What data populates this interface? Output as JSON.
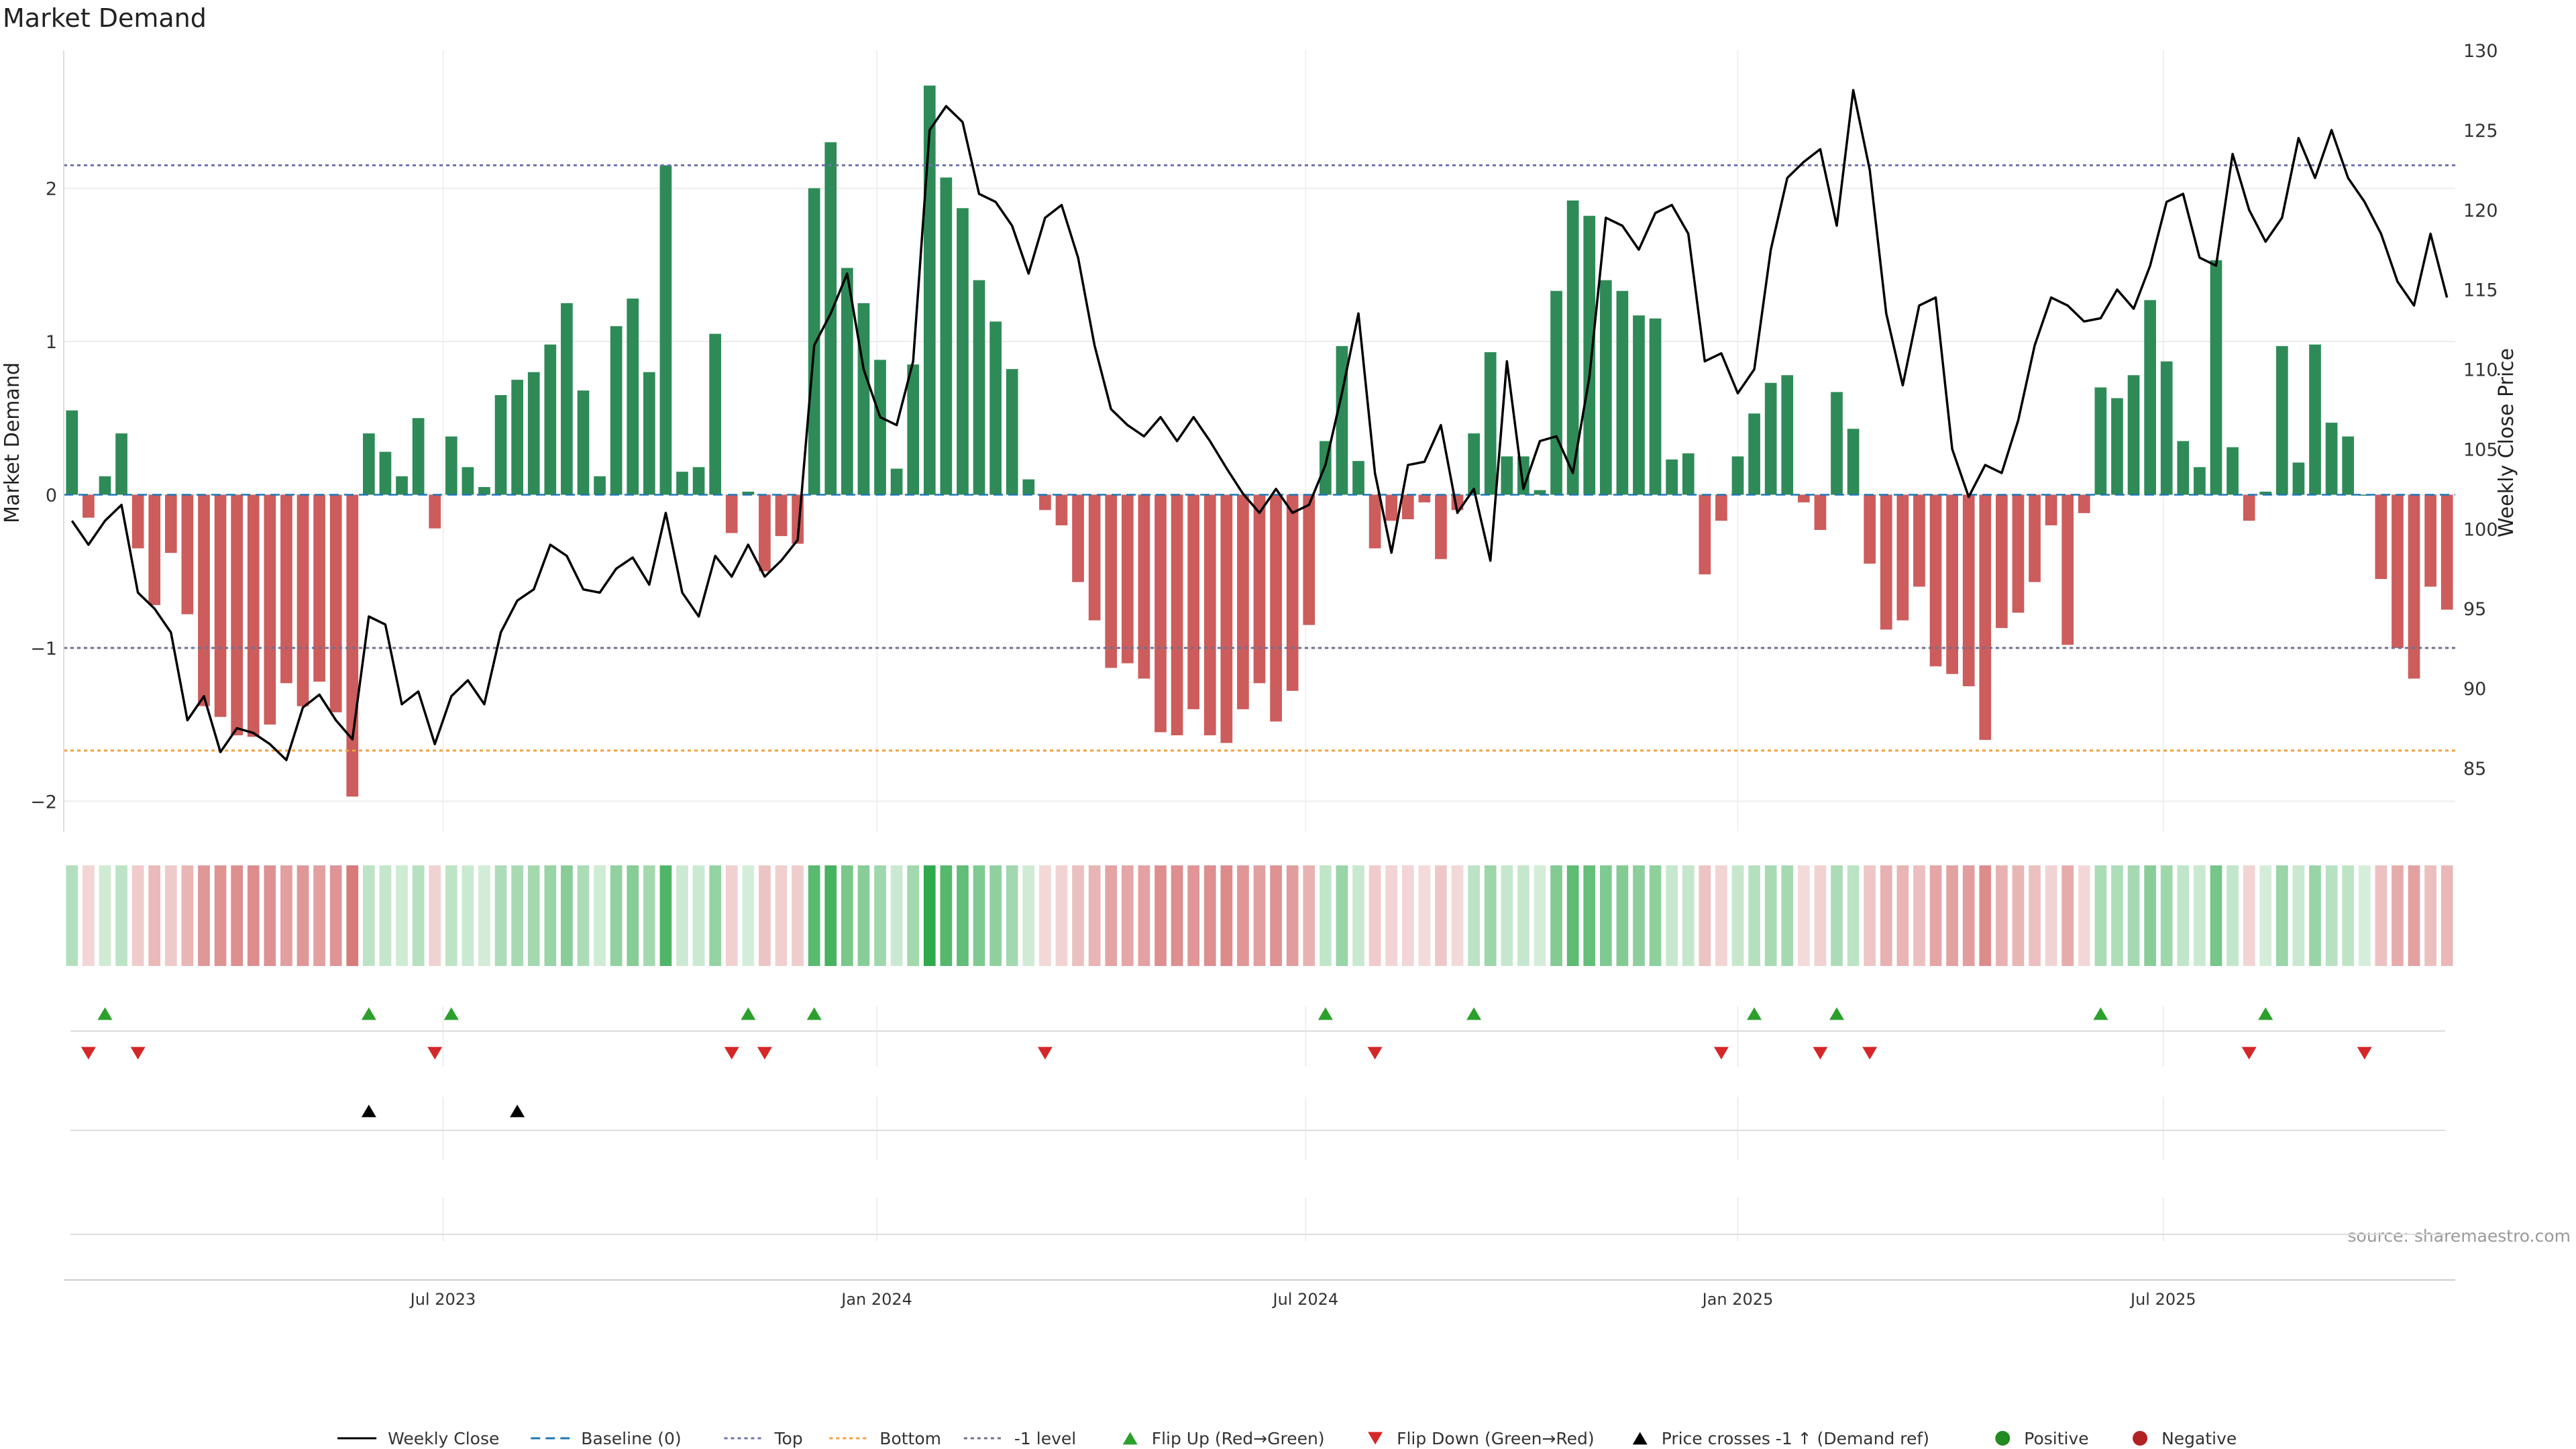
{
  "chart_data": {
    "type": "bar",
    "title": "Market Demand",
    "ylabel_left": "Market Demand",
    "ylabel_right": "Weekly Close Price",
    "source_text": "source: sharemaestro.com",
    "ylim_left": [
      -2.2,
      2.9
    ],
    "ylim_right": [
      81,
      130
    ],
    "yticks_left": [
      2,
      1,
      0,
      -1,
      -2
    ],
    "ytick_labels_left": [
      "2",
      "1",
      "0",
      "−1",
      "−2"
    ],
    "yticks_right": [
      130,
      125,
      120,
      115,
      110,
      105,
      100,
      95,
      90,
      85
    ],
    "ytick_labels_right": [
      "130",
      "125",
      "120",
      "115",
      "110",
      "105",
      "100",
      "95",
      "90",
      "85"
    ],
    "x_date_ticks": [
      {
        "index": 22.5,
        "label": "Jul 2023"
      },
      {
        "index": 48.8,
        "label": "Jan 2024"
      },
      {
        "index": 74.8,
        "label": "Jul 2024"
      },
      {
        "index": 101,
        "label": "Jan 2025"
      },
      {
        "index": 126.8,
        "label": "Jul 2025"
      }
    ],
    "reference_lines": {
      "top": 2.15,
      "bottom": -1.67,
      "minus_one": -1,
      "baseline": 0
    },
    "demand": [
      0.55,
      -0.15,
      0.12,
      0.4,
      -0.35,
      -0.72,
      -0.38,
      -0.78,
      -1.38,
      -1.45,
      -1.57,
      -1.58,
      -1.5,
      -1.23,
      -1.38,
      -1.22,
      -1.42,
      -1.97,
      0.4,
      0.28,
      0.12,
      0.5,
      -0.22,
      0.38,
      0.18,
      0.05,
      0.65,
      0.75,
      0.8,
      0.98,
      1.25,
      0.68,
      0.12,
      1.1,
      1.28,
      0.8,
      2.15,
      0.15,
      0.18,
      1.05,
      -0.25,
      0.02,
      -0.5,
      -0.27,
      -0.32,
      2.0,
      2.3,
      1.48,
      1.25,
      0.88,
      0.17,
      0.85,
      2.67,
      2.07,
      1.87,
      1.4,
      1.13,
      0.82,
      0.1,
      -0.1,
      -0.2,
      -0.57,
      -0.82,
      -1.13,
      -1.1,
      -1.2,
      -1.55,
      -1.57,
      -1.4,
      -1.57,
      -1.62,
      -1.4,
      -1.23,
      -1.48,
      -1.28,
      -0.85,
      0.35,
      0.97,
      0.22,
      -0.35,
      -0.17,
      -0.16,
      -0.05,
      -0.42,
      -0.1,
      0.4,
      0.93,
      0.25,
      0.25,
      0.03,
      1.33,
      1.92,
      1.82,
      1.4,
      1.33,
      1.17,
      1.15,
      0.23,
      0.27,
      -0.52,
      -0.17,
      0.25,
      0.53,
      0.73,
      0.78,
      -0.05,
      -0.23,
      0.67,
      0.43,
      -0.45,
      -0.88,
      -0.82,
      -0.6,
      -1.12,
      -1.17,
      -1.25,
      -1.6,
      -0.87,
      -0.77,
      -0.57,
      -0.2,
      -0.98,
      -0.12,
      0.7,
      0.63,
      0.78,
      1.27,
      0.87,
      0.35,
      0.18,
      1.53,
      0.31,
      -0.17,
      0.02,
      0.97,
      0.21,
      0.98,
      0.47,
      0.38,
      0.0,
      -0.55,
      -1.0,
      -1.2,
      -0.6,
      -0.75
    ],
    "weekly_close": [
      100.5,
      99.0,
      100.5,
      101.5,
      96.0,
      95.0,
      93.5,
      88.0,
      89.5,
      86.0,
      87.5,
      87.2,
      86.5,
      85.5,
      88.8,
      89.6,
      88.0,
      86.8,
      94.5,
      94.0,
      89.0,
      89.8,
      86.5,
      89.5,
      90.5,
      89.0,
      93.5,
      95.5,
      96.2,
      99.0,
      98.3,
      96.2,
      96.0,
      97.5,
      98.2,
      96.5,
      101.0,
      96.0,
      94.5,
      98.3,
      97.0,
      99.0,
      97.0,
      98.0,
      99.3,
      111.5,
      113.5,
      116.0,
      110.0,
      107.0,
      106.5,
      110.5,
      125.0,
      126.5,
      125.5,
      121.0,
      120.5,
      119.0,
      116.0,
      119.5,
      120.3,
      117.0,
      111.5,
      107.5,
      106.5,
      105.8,
      107.0,
      105.5,
      107.0,
      105.5,
      103.8,
      102.2,
      101.0,
      102.5,
      101.0,
      101.5,
      104.0,
      108.5,
      113.5,
      103.5,
      98.5,
      104.0,
      104.2,
      106.5,
      101.0,
      102.5,
      98.0,
      110.5,
      102.5,
      105.5,
      105.8,
      103.5,
      109.5,
      119.5,
      119.0,
      117.5,
      119.8,
      120.3,
      118.5,
      110.5,
      111.0,
      108.5,
      110.0,
      117.5,
      122.0,
      123.0,
      123.8,
      119.0,
      127.5,
      122.5,
      113.5,
      109.0,
      114.0,
      114.5,
      105.0,
      102.0,
      104.0,
      103.5,
      106.8,
      111.5,
      114.5,
      114.0,
      113.0,
      113.2,
      115.0,
      113.8,
      116.5,
      120.5,
      121.0,
      117.0,
      116.5,
      123.5,
      120.0,
      118.0,
      119.5,
      124.5,
      122.0,
      125.0,
      122.0,
      120.5,
      118.5,
      115.5,
      114.0,
      118.5,
      114.5
    ],
    "flip_up_indices": [
      2,
      18,
      23,
      41,
      45,
      76,
      85,
      102,
      107,
      123,
      133
    ],
    "flip_down_indices": [
      1,
      4,
      22,
      40,
      42,
      59,
      79,
      100,
      106,
      109,
      132,
      139
    ],
    "price_cross_indices": [
      18,
      27
    ],
    "positive_color": "#2e8b57",
    "negative_color": "#cd5c5c",
    "price_line_color": "#000000",
    "flip_up_color": "#2ca02c",
    "flip_down_color": "#d62728",
    "top_line_color": "#7070b0",
    "bottom_line_color": "#f0a040",
    "minus_one_line_color": "#707090",
    "baseline_color": "#1f77b4",
    "legend": [
      {
        "key": "weekly_close",
        "label": "Weekly Close",
        "marker": "solid-line",
        "color": "#000000"
      },
      {
        "key": "baseline",
        "label": "Baseline (0)",
        "marker": "dashed-line",
        "color": "#1f77b4"
      },
      {
        "key": "top",
        "label": "Top",
        "marker": "dotted-line",
        "color": "#7070b0"
      },
      {
        "key": "bottom",
        "label": "Bottom",
        "marker": "dotted-line",
        "color": "#f0a040"
      },
      {
        "key": "minus_one",
        "label": "-1 level",
        "marker": "dotted-line",
        "color": "#707090"
      },
      {
        "key": "flip_up",
        "label": "Flip Up (Red→Green)",
        "marker": "triangle-up",
        "color": "#2ca02c"
      },
      {
        "key": "flip_down",
        "label": "Flip Down (Green→Red)",
        "marker": "triangle-down",
        "color": "#d62728"
      },
      {
        "key": "price_cross",
        "label": "Price crosses -1 ↑ (Demand ref)",
        "marker": "triangle-up",
        "color": "#000000"
      },
      {
        "key": "positive",
        "label": "Positive",
        "marker": "circle",
        "color": "#228b22"
      },
      {
        "key": "negative",
        "label": "Negative",
        "marker": "circle",
        "color": "#b22222"
      }
    ]
  }
}
